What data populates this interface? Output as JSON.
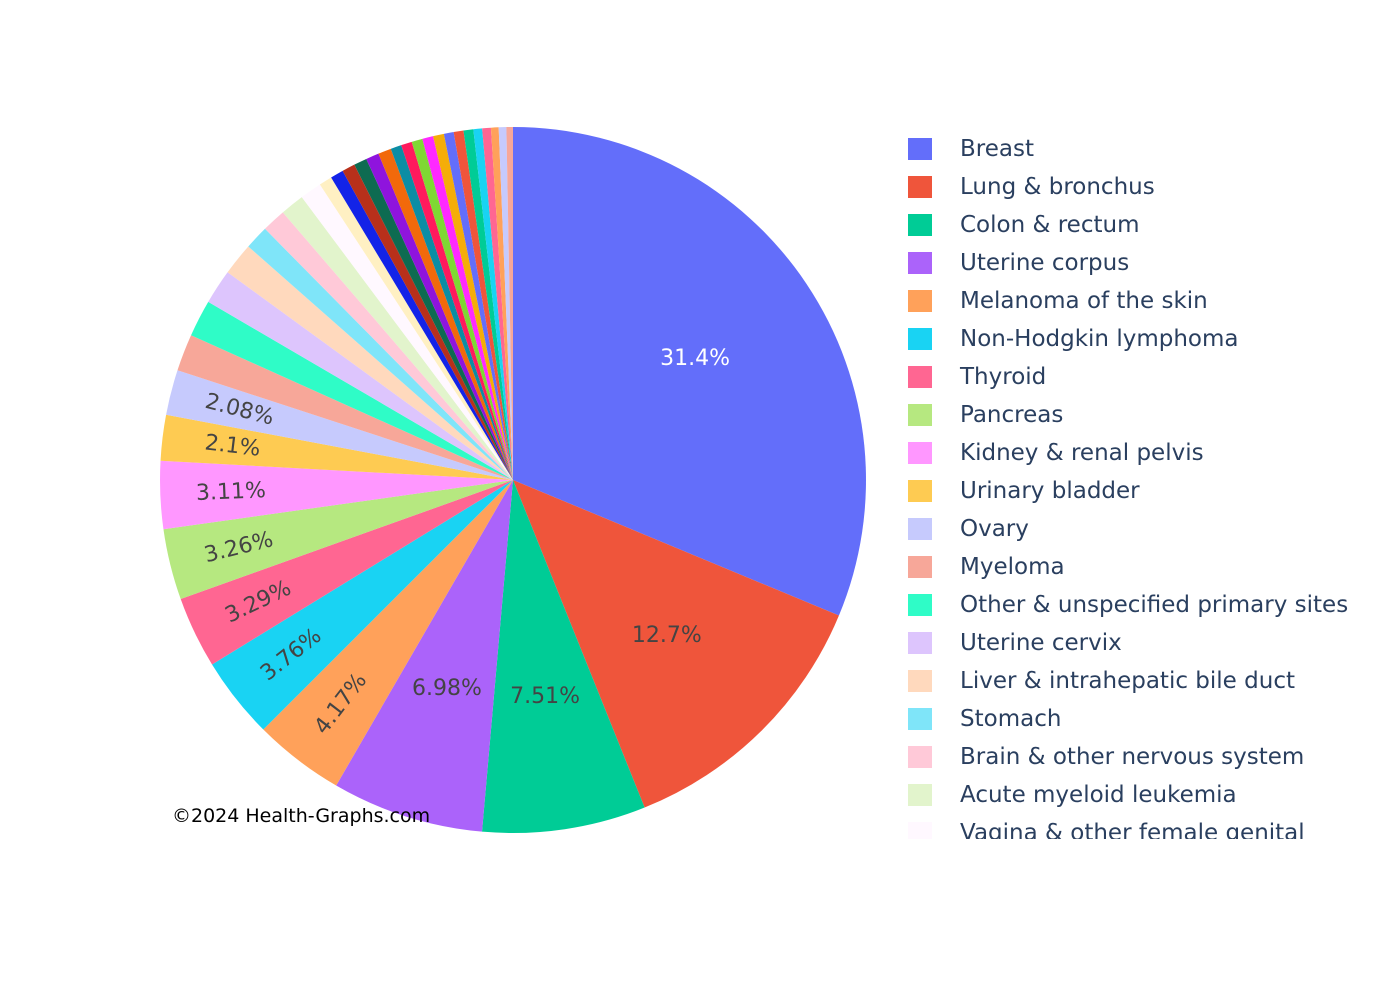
{
  "watermark": "©2024 Health-Graphs.com",
  "chart_data": {
    "type": "pie",
    "direction": "clockwise",
    "legend_position": "right",
    "slices": [
      {
        "label": "Breast",
        "value": 31.4,
        "display": "31.4%",
        "color": "#636efa",
        "text_color": "#ffffff"
      },
      {
        "label": "Lung & bronchus",
        "value": 12.7,
        "display": "12.7%",
        "color": "#ef553b",
        "text_color": "#444444"
      },
      {
        "label": "Colon & rectum",
        "value": 7.51,
        "display": "7.51%",
        "color": "#00cc96",
        "text_color": "#444444"
      },
      {
        "label": "Uterine corpus",
        "value": 6.98,
        "display": "6.98%",
        "color": "#ab63fa",
        "text_color": "#444444"
      },
      {
        "label": "Melanoma of the skin",
        "value": 4.17,
        "display": "4.17%",
        "color": "#ffa15a",
        "text_color": "#444444"
      },
      {
        "label": "Non-Hodgkin lymphoma",
        "value": 3.76,
        "display": "3.76%",
        "color": "#19d3f3",
        "text_color": "#444444"
      },
      {
        "label": "Thyroid",
        "value": 3.29,
        "display": "3.29%",
        "color": "#ff6692",
        "text_color": "#444444"
      },
      {
        "label": "Pancreas",
        "value": 3.26,
        "display": "3.26%",
        "color": "#b6e880",
        "text_color": "#444444"
      },
      {
        "label": "Kidney & renal pelvis",
        "value": 3.11,
        "display": "3.11%",
        "color": "#ff97ff",
        "text_color": "#444444"
      },
      {
        "label": "Urinary bladder",
        "value": 2.1,
        "display": "2.1%",
        "color": "#fecb52",
        "text_color": "#444444"
      },
      {
        "label": "Ovary",
        "value": 2.08,
        "display": "2.08%",
        "color": "#c6cafd",
        "text_color": "#444444"
      },
      {
        "label": "Myeloma",
        "value": 1.7,
        "display": "",
        "color": "#f7a799"
      },
      {
        "label": "Other & unspecified primary sites",
        "value": 1.7,
        "display": "",
        "color": "#2ffcc7"
      },
      {
        "label": "Uterine cervix",
        "value": 1.6,
        "display": "",
        "color": "#ddc5fd"
      },
      {
        "label": "Liver & intrahepatic bile duct",
        "value": 1.5,
        "display": "",
        "color": "#ffd9bd"
      },
      {
        "label": "Stomach",
        "value": 1.1,
        "display": "",
        "color": "#7fe5f9"
      },
      {
        "label": "Brain & other nervous system",
        "value": 1.1,
        "display": "",
        "color": "#ffc9d8"
      },
      {
        "label": "Acute myeloid leukemia",
        "value": 1.1,
        "display": "",
        "color": "#e2f4cc"
      },
      {
        "label": "Vagina & other female genital",
        "value": 1.0,
        "display": "",
        "color": "#fff8ff"
      },
      {
        "label": "",
        "value": 0.6,
        "display": "",
        "color": "#fff0c3"
      },
      {
        "label": "",
        "value": 0.6,
        "display": "",
        "color": "#1323e8"
      },
      {
        "label": "",
        "value": 0.6,
        "display": "",
        "color": "#b8301b"
      },
      {
        "label": "",
        "value": 0.6,
        "display": "",
        "color": "#0e6b51"
      },
      {
        "label": "",
        "value": 0.6,
        "display": "",
        "color": "#8f14dd"
      },
      {
        "label": "",
        "value": 0.6,
        "display": "",
        "color": "#f2690b"
      },
      {
        "label": "",
        "value": 0.5,
        "display": "",
        "color": "#0c8da4"
      },
      {
        "label": "",
        "value": 0.5,
        "display": "",
        "color": "#ff1a5d"
      },
      {
        "label": "",
        "value": 0.5,
        "display": "",
        "color": "#7fd833"
      },
      {
        "label": "",
        "value": 0.5,
        "display": "",
        "color": "#ff29ff"
      },
      {
        "label": "",
        "value": 0.5,
        "display": "",
        "color": "#f5ad08"
      },
      {
        "label": "",
        "value": 0.45,
        "display": "",
        "color": "#636efa"
      },
      {
        "label": "",
        "value": 0.45,
        "display": "",
        "color": "#ef553b"
      },
      {
        "label": "",
        "value": 0.45,
        "display": "",
        "color": "#00cc96"
      },
      {
        "label": "",
        "value": 0.4,
        "display": "",
        "color": "#19d3f3"
      },
      {
        "label": "",
        "value": 0.4,
        "display": "",
        "color": "#ff6692"
      },
      {
        "label": "",
        "value": 0.35,
        "display": "",
        "color": "#ffa15a"
      },
      {
        "label": "",
        "value": 0.35,
        "display": "",
        "color": "#c6cafd"
      },
      {
        "label": "",
        "value": 0.3,
        "display": "",
        "color": "#f7a799"
      }
    ]
  }
}
